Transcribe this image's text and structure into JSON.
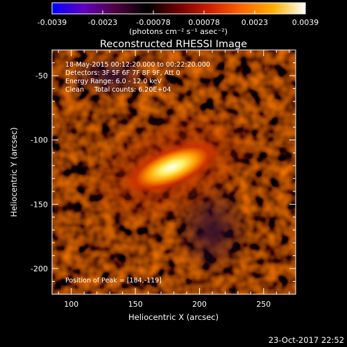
{
  "chart_data": {
    "type": "heatmap",
    "title": "Reconstructed RHESSI Image",
    "xlabel": "Heliocentric X (arcsec)",
    "ylabel": "Heliocentric Y (arcsec)",
    "xlim": [
      85,
      275
    ],
    "ylim": [
      -220,
      -30
    ],
    "x_ticks": [
      100,
      150,
      200,
      250
    ],
    "y_ticks": [
      -50,
      -100,
      -150,
      -200
    ],
    "colorbar": {
      "range": [
        -0.0039,
        0.0039
      ],
      "tick_labels": [
        "-0.0039",
        "-0.0023",
        "-0.00078",
        "0.00078",
        "0.0023",
        "0.0039"
      ],
      "unit_label": "(photons cm⁻² s⁻¹ asec⁻²)",
      "colormap": [
        "#0000ff",
        "#6000c0",
        "#500040",
        "#000000",
        "#700000",
        "#d02000",
        "#ff6600",
        "#ffb000",
        "#ffffff"
      ]
    },
    "annotations": {
      "time_range": "18-May-2015 00:12:20.000 to 00:22:20.000",
      "detectors": "Detectors: 3F 5F 6F 7F 8F 9F, Att 0",
      "energy": "Energy Range: 6.0 - 12.0 keV",
      "clean": "Clean     Total counts: 6.20E+04",
      "peak": "Position of Peak = [184,-119]"
    },
    "peak_position": [
      184,
      -119
    ],
    "source_extent_arcsec": [
      40,
      16
    ],
    "source_tilt_deg": -22
  },
  "footer": {
    "timestamp": "23-Oct-2017 22:52"
  },
  "colors": {
    "background": "#000000",
    "foreground": "#ffffff"
  }
}
